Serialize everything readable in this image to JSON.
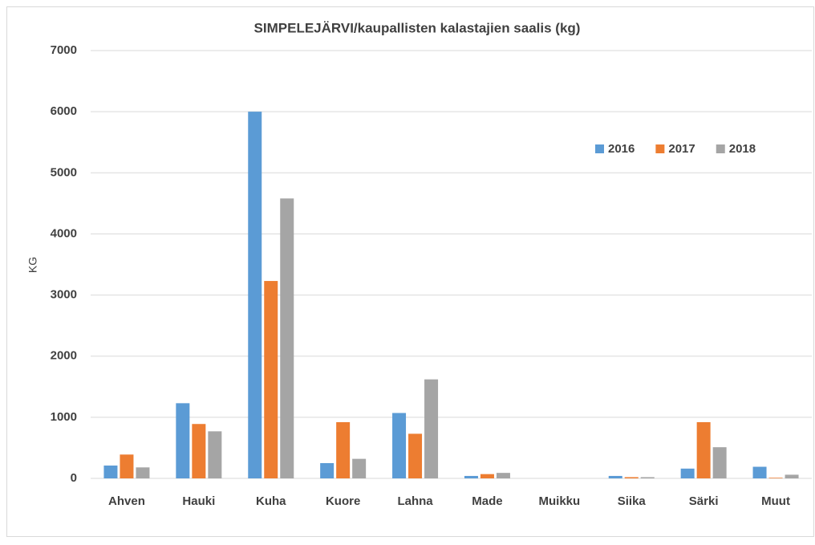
{
  "chart_data": {
    "type": "bar",
    "title": "SIMPELEJÄRVI/kaupallisten kalastajien saalis (kg)",
    "y_label": "KG",
    "categories": [
      "Ahven",
      "Hauki",
      "Kuha",
      "Kuore",
      "Lahna",
      "Made",
      "Muikku",
      "Siika",
      "Särki",
      "Muut"
    ],
    "series": [
      {
        "name": "2016",
        "color": "#5b9bd5",
        "values": [
          210,
          1230,
          6000,
          250,
          1070,
          40,
          0,
          40,
          160,
          190
        ]
      },
      {
        "name": "2017",
        "color": "#ed7d31",
        "values": [
          390,
          890,
          3230,
          920,
          730,
          70,
          0,
          20,
          920,
          10
        ]
      },
      {
        "name": "2018",
        "color": "#a5a5a5",
        "values": [
          180,
          770,
          4580,
          320,
          1620,
          90,
          0,
          20,
          510,
          60
        ]
      }
    ],
    "ylim": [
      0,
      7000
    ],
    "yticks": [
      0,
      1000,
      2000,
      3000,
      4000,
      5000,
      6000,
      7000
    ],
    "grid": true,
    "legend": "upper right"
  }
}
